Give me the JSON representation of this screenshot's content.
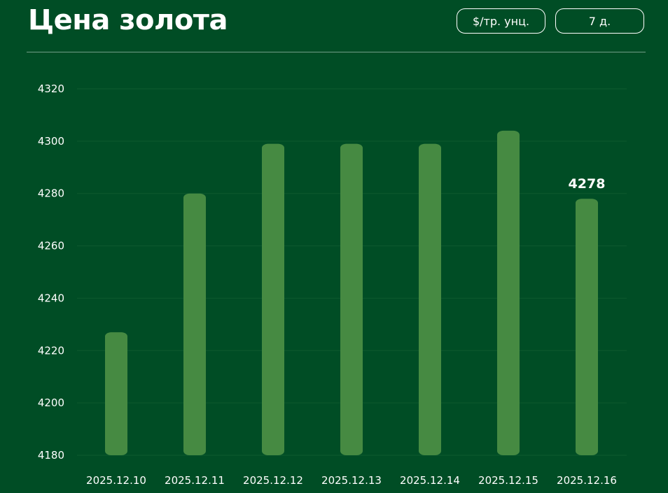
{
  "header": {
    "title": "Цена золота",
    "unit_button": "$/тр. унц.",
    "range_button": "7 д."
  },
  "colors": {
    "background": "#004d25",
    "bar": "#468a42",
    "grid": "#0e5a2f",
    "text": "#ffffff"
  },
  "chart_data": {
    "type": "bar",
    "title": "Цена золота",
    "categories": [
      "2025.12.10",
      "2025.12.11",
      "2025.12.12",
      "2025.12.13",
      "2025.12.14",
      "2025.12.15",
      "2025.12.16"
    ],
    "values": [
      4227,
      4280,
      4299,
      4299,
      4299,
      4304,
      4278
    ],
    "ylim": [
      4180,
      4320
    ],
    "yticks": [
      4180,
      4200,
      4220,
      4240,
      4260,
      4280,
      4300,
      4320
    ],
    "highlight_label": "4278",
    "grid": true,
    "xlabel": "",
    "ylabel": ""
  }
}
